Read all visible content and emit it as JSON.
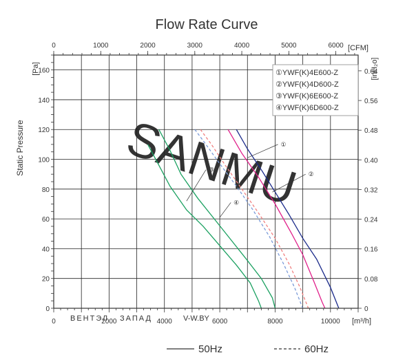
{
  "chart_data": {
    "type": "line",
    "title": "Flow Rate Curve",
    "ylabel": "Static Pressure",
    "x_unit": "[m³/h]",
    "y_unit": "[Pa]",
    "x2_unit": "[CFM]",
    "y2_unit": "[inH₂o]",
    "xlim": [
      0,
      11000
    ],
    "ylim": [
      0,
      170
    ],
    "x_ticks": [
      0,
      2000,
      4000,
      6000,
      8000,
      10000
    ],
    "x_tick_labels": [
      "0",
      "2000",
      "4000",
      "6000",
      "8000",
      "10000"
    ],
    "y_ticks": [
      0,
      20,
      40,
      60,
      80,
      100,
      120,
      140,
      160
    ],
    "y_tick_labels": [
      "0",
      "20",
      "40",
      "60",
      "80",
      "100",
      "120",
      "140",
      "160"
    ],
    "x2_ticks": [
      0,
      1000,
      2000,
      3000,
      4000,
      5000,
      6000
    ],
    "x2_tick_labels": [
      "0",
      "1000",
      "2000",
      "3000",
      "4000",
      "5000",
      "6000"
    ],
    "y2_ticks": [
      0,
      0.08,
      0.16,
      0.24,
      0.32,
      0.4,
      0.48,
      0.56,
      0.64
    ],
    "y2_tick_labels": [
      "0",
      "0.08",
      "0.16",
      "0.24",
      "0.32",
      "0.40",
      "0.48",
      "0.56",
      "0.64"
    ],
    "grid": true,
    "legend_position": "top-right",
    "legend": [
      "①YWF(K)4E600-Z",
      "②YWF(K)4D600-Z",
      "③YWF(K)6E600-Z",
      "④YWF(K)6D600-Z"
    ],
    "line_legend": [
      {
        "label": "50Hz",
        "style": "solid"
      },
      {
        "label": "60Hz",
        "style": "dashed"
      }
    ],
    "series": [
      {
        "marker": "①",
        "freq": "50Hz",
        "color": "#1a2a8a",
        "dashed": false,
        "x": [
          6600,
          7000,
          7500,
          8000,
          8500,
          9000,
          9500,
          10000,
          10300
        ],
        "y": [
          120,
          107,
          93,
          78,
          63,
          47,
          33,
          14,
          0
        ]
      },
      {
        "marker": "②",
        "freq": "50Hz",
        "color": "#e0208a",
        "dashed": false,
        "x": [
          6300,
          6800,
          7400,
          8000,
          8600,
          9000,
          9400,
          9700,
          9800
        ],
        "y": [
          120,
          104,
          88,
          70,
          50,
          36,
          18,
          4,
          0
        ]
      },
      {
        "marker": "③",
        "freq": "50Hz",
        "color": "#1aa060",
        "dashed": false,
        "x": [
          3800,
          4200,
          4600,
          5200,
          5800,
          6400,
          7000,
          7500,
          7900,
          8000
        ],
        "y": [
          120,
          106,
          90,
          74,
          60,
          46,
          32,
          20,
          7,
          0
        ]
      },
      {
        "marker": "④",
        "freq": "50Hz",
        "color": "#1aa060",
        "dashed": false,
        "x": [
          3400,
          3800,
          4200,
          4800,
          5400,
          6000,
          6600,
          7100,
          7400,
          7500
        ],
        "y": [
          110,
          96,
          82,
          66,
          55,
          42,
          29,
          17,
          5,
          0
        ]
      },
      {
        "marker": "①",
        "freq": "60Hz",
        "color": "#7a9ad8",
        "dashed": true,
        "x": [
          5100,
          5500,
          6000,
          6600,
          7200,
          7800,
          8300,
          8700,
          9000
        ],
        "y": [
          120,
          110,
          97,
          82,
          66,
          48,
          30,
          14,
          0
        ]
      },
      {
        "marker": "②",
        "freq": "60Hz",
        "color": "#f08080",
        "dashed": true,
        "x": [
          5300,
          5700,
          6200,
          6800,
          7400,
          8000,
          8500,
          8900,
          9200
        ],
        "y": [
          120,
          110,
          96,
          80,
          64,
          47,
          30,
          14,
          0
        ]
      }
    ],
    "annotations": [
      {
        "text": "①",
        "x": 8200,
        "y": 110
      },
      {
        "text": "②",
        "x": 9200,
        "y": 90
      },
      {
        "text": "③",
        "x": 5600,
        "y": 93
      },
      {
        "text": "④",
        "x": 6500,
        "y": 71
      }
    ]
  },
  "watermark": {
    "text1": "ВЕНТЭЛ",
    "text2": "ЗАПАД",
    "text3": "V-W.BY"
  },
  "watermark_big": "SANMU"
}
